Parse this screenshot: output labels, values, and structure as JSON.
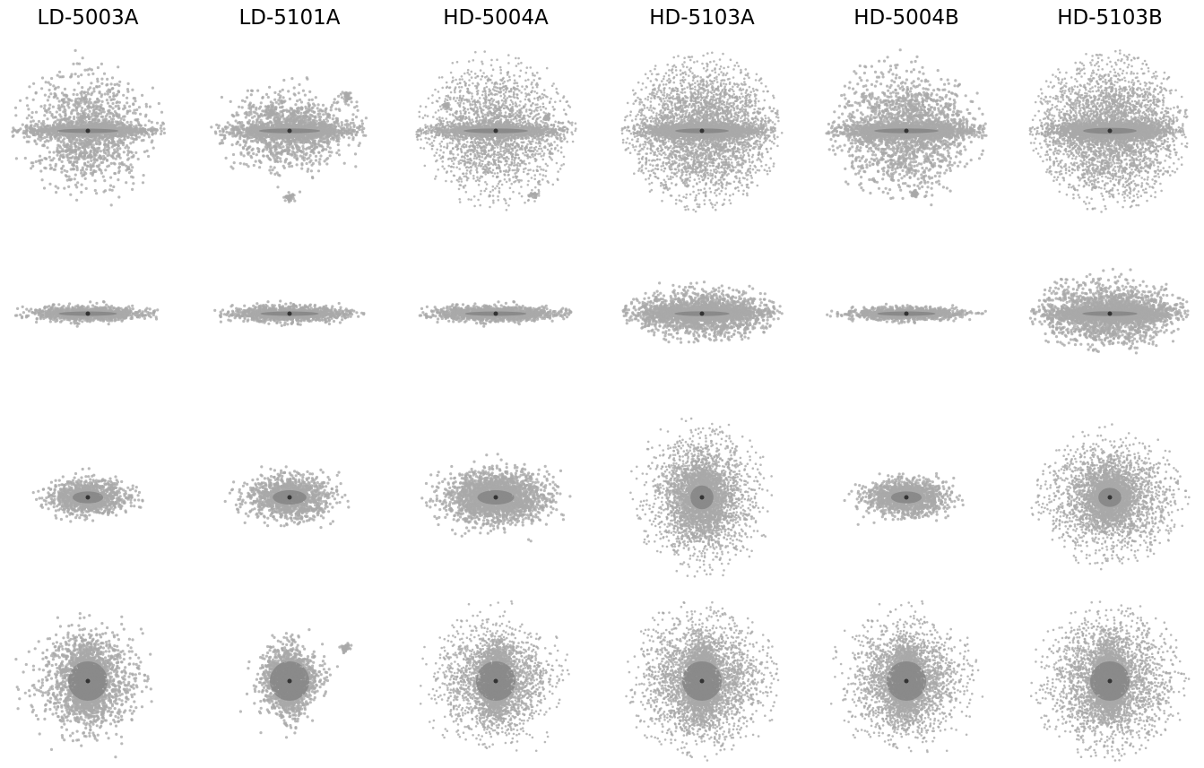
{
  "chart_data": {
    "type": "scatter",
    "grid": false,
    "axes_visible": false,
    "point_color": "#a9a9a9",
    "core_color": "#505050",
    "columns": [
      {
        "title": "LD-5003A",
        "panels": [
          {
            "view": "edge-on",
            "spread_x": 0.32,
            "spread_y": 0.3,
            "outer_x": 0.45,
            "outer_y": 0.48,
            "disk_width": 0.4,
            "disk_thickness": 0.018,
            "density": 2400,
            "satellites": [
              [
                0.1,
                -0.03,
                0.04
              ]
            ]
          },
          {
            "view": "edge-on-thin",
            "spread_x": 0.3,
            "spread_y": 0.045,
            "outer_x": 0.43,
            "outer_y": 0.08,
            "disk_width": 0.38,
            "disk_thickness": 0.015,
            "density": 1100,
            "satellites": []
          },
          {
            "view": "edge-on-thick",
            "spread_x": 0.25,
            "spread_y": 0.085,
            "outer_x": 0.42,
            "outer_y": 0.22,
            "disk_width": 0.2,
            "disk_thickness": 0.05,
            "density": 1200,
            "satellites": []
          },
          {
            "view": "face-on",
            "spread_x": 0.27,
            "spread_y": 0.27,
            "outer_x": 0.45,
            "outer_y": 0.48,
            "disk_width": 0.1,
            "disk_thickness": 0.1,
            "density": 2600,
            "satellites": []
          }
        ]
      },
      {
        "title": "LD-5101A",
        "panels": [
          {
            "view": "edge-on",
            "spread_x": 0.33,
            "spread_y": 0.2,
            "outer_x": 0.46,
            "outer_y": 0.43,
            "disk_width": 0.4,
            "disk_thickness": 0.02,
            "density": 2300,
            "satellites": [
              [
                -0.11,
                -0.11,
                0.05
              ],
              [
                0.34,
                -0.2,
                0.05
              ],
              [
                0.0,
                0.39,
                0.035
              ]
            ]
          },
          {
            "view": "edge-on-thin",
            "spread_x": 0.32,
            "spread_y": 0.05,
            "outer_x": 0.44,
            "outer_y": 0.09,
            "disk_width": 0.38,
            "disk_thickness": 0.015,
            "density": 1200,
            "satellites": []
          },
          {
            "view": "edge-on-thick",
            "spread_x": 0.25,
            "spread_y": 0.13,
            "outer_x": 0.45,
            "outer_y": 0.25,
            "disk_width": 0.22,
            "disk_thickness": 0.06,
            "density": 1300,
            "satellites": []
          },
          {
            "view": "face-on",
            "spread_x": 0.17,
            "spread_y": 0.17,
            "outer_x": 0.45,
            "outer_y": 0.45,
            "disk_width": 0.1,
            "disk_thickness": 0.1,
            "density": 1800,
            "satellites": [
              [
                -0.11,
                -0.07,
                0.07
              ],
              [
                0.33,
                -0.19,
                0.04
              ]
            ]
          }
        ]
      },
      {
        "title": "HD-5004A",
        "panels": [
          {
            "view": "edge-on",
            "spread_x": 0.38,
            "spread_y": 0.34,
            "outer_x": 0.47,
            "outer_y": 0.48,
            "disk_width": 0.42,
            "disk_thickness": 0.02,
            "density": 3800,
            "satellites": [
              [
                -0.29,
                -0.15,
                0.03
              ],
              [
                0.3,
                -0.08,
                0.025
              ],
              [
                0.22,
                0.38,
                0.04
              ]
            ]
          },
          {
            "view": "edge-on-thin",
            "spread_x": 0.34,
            "spread_y": 0.045,
            "outer_x": 0.45,
            "outer_y": 0.08,
            "disk_width": 0.4,
            "disk_thickness": 0.015,
            "density": 1400,
            "satellites": []
          },
          {
            "view": "edge-on-thick",
            "spread_x": 0.32,
            "spread_y": 0.15,
            "outer_x": 0.46,
            "outer_y": 0.32,
            "disk_width": 0.24,
            "disk_thickness": 0.06,
            "density": 2400,
            "satellites": []
          },
          {
            "view": "face-on",
            "spread_x": 0.3,
            "spread_y": 0.3,
            "outer_x": 0.47,
            "outer_y": 0.48,
            "disk_width": 0.1,
            "disk_thickness": 0.1,
            "density": 3600,
            "satellites": []
          }
        ]
      },
      {
        "title": "HD-5103A",
        "panels": [
          {
            "view": "edge-on",
            "spread_x": 0.4,
            "spread_y": 0.36,
            "outer_x": 0.47,
            "outer_y": 0.48,
            "disk_width": 0.35,
            "disk_thickness": 0.02,
            "density": 6000,
            "satellites": []
          },
          {
            "view": "edge-on-thin",
            "spread_x": 0.38,
            "spread_y": 0.13,
            "outer_x": 0.47,
            "outer_y": 0.22,
            "disk_width": 0.36,
            "disk_thickness": 0.02,
            "density": 3000,
            "satellites": []
          },
          {
            "view": "edge-on-thick",
            "spread_x": 0.3,
            "spread_y": 0.33,
            "outer_x": 0.44,
            "outer_y": 0.48,
            "disk_width": 0.15,
            "disk_thickness": 0.1,
            "density": 3800,
            "satellites": []
          },
          {
            "view": "face-on",
            "spread_x": 0.34,
            "spread_y": 0.34,
            "outer_x": 0.47,
            "outer_y": 0.48,
            "disk_width": 0.1,
            "disk_thickness": 0.1,
            "density": 4600,
            "satellites": []
          }
        ]
      },
      {
        "title": "HD-5004B",
        "panels": [
          {
            "view": "edge-on",
            "spread_x": 0.36,
            "spread_y": 0.32,
            "outer_x": 0.47,
            "outer_y": 0.48,
            "disk_width": 0.42,
            "disk_thickness": 0.02,
            "density": 3300,
            "satellites": [
              [
                -0.22,
                0.05,
                0.03
              ],
              [
                0.05,
                0.37,
                0.03
              ]
            ]
          },
          {
            "view": "edge-on-thin",
            "spread_x": 0.3,
            "spread_y": 0.04,
            "outer_x": 0.47,
            "outer_y": 0.06,
            "disk_width": 0.38,
            "disk_thickness": 0.012,
            "density": 1200,
            "satellites": []
          },
          {
            "view": "edge-on-thick",
            "spread_x": 0.24,
            "spread_y": 0.1,
            "outer_x": 0.43,
            "outer_y": 0.22,
            "disk_width": 0.2,
            "disk_thickness": 0.05,
            "density": 1400,
            "satellites": []
          },
          {
            "view": "face-on",
            "spread_x": 0.3,
            "spread_y": 0.3,
            "outer_x": 0.47,
            "outer_y": 0.48,
            "disk_width": 0.1,
            "disk_thickness": 0.1,
            "density": 4000,
            "satellites": []
          }
        ]
      },
      {
        "title": "HD-5103B",
        "panels": [
          {
            "view": "edge-on",
            "spread_x": 0.4,
            "spread_y": 0.37,
            "outer_x": 0.47,
            "outer_y": 0.48,
            "disk_width": 0.35,
            "disk_thickness": 0.025,
            "density": 6000,
            "satellites": []
          },
          {
            "view": "edge-on-thin",
            "spread_x": 0.38,
            "spread_y": 0.17,
            "outer_x": 0.47,
            "outer_y": 0.27,
            "disk_width": 0.36,
            "disk_thickness": 0.02,
            "density": 3400,
            "satellites": []
          },
          {
            "view": "edge-on-thick",
            "spread_x": 0.36,
            "spread_y": 0.3,
            "outer_x": 0.47,
            "outer_y": 0.43,
            "disk_width": 0.15,
            "disk_thickness": 0.08,
            "density": 3800,
            "satellites": []
          },
          {
            "view": "face-on",
            "spread_x": 0.34,
            "spread_y": 0.34,
            "outer_x": 0.47,
            "outer_y": 0.48,
            "disk_width": 0.1,
            "disk_thickness": 0.1,
            "density": 4600,
            "satellites": []
          }
        ]
      }
    ]
  }
}
